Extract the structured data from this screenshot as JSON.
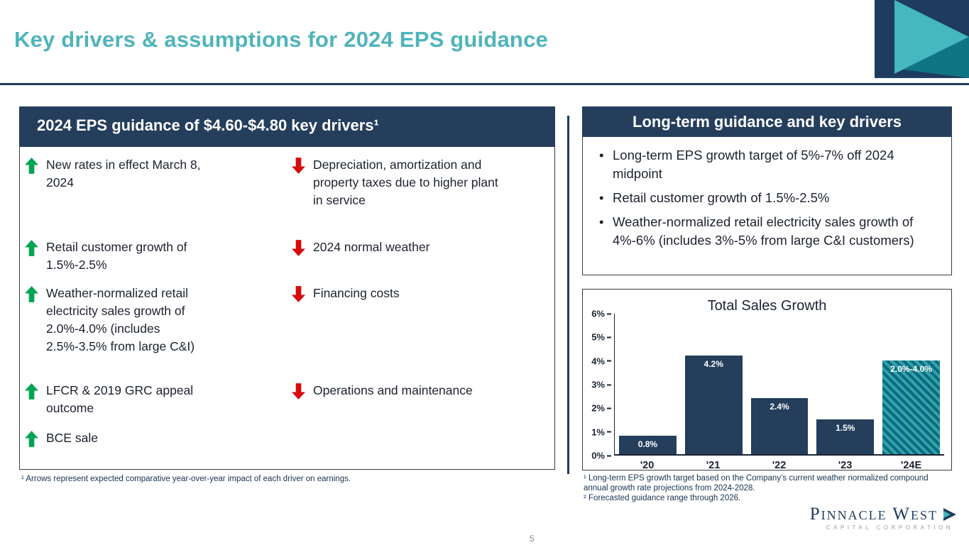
{
  "title": "Key drivers & assumptions for 2024 EPS guidance",
  "page_number": "5",
  "left_panel": {
    "header": "2024 EPS guidance of $4.60-$4.80 key drivers¹",
    "rows": [
      {
        "left_text": "New rates in effect March 8, 2024",
        "right_text": "Depreciation, amortization and property taxes due to higher plant in service"
      },
      {
        "left_text": "Retail customer growth of 1.5%-2.5%",
        "right_text": "2024 normal weather"
      },
      {
        "left_text": "Weather-normalized retail electricity sales growth of 2.0%-4.0% (includes 2.5%-3.5% from large C&I)",
        "right_text": "Financing costs"
      },
      {
        "left_text": "LFCR & 2019 GRC appeal outcome",
        "right_text": "Operations and maintenance"
      },
      {
        "left_text": "BCE sale",
        "right_text": ""
      }
    ],
    "footnote": "¹ Arrows represent expected comparative year-over-year impact of each driver on earnings."
  },
  "right_panel": {
    "header": "Long-term guidance and key drivers",
    "bullets": [
      "Long-term EPS growth target of 5%-7% off 2024 midpoint",
      "Retail customer growth of 1.5%-2.5%",
      "Weather-normalized retail electricity sales growth of 4%-6% (includes 3%-5% from large C&I customers)"
    ],
    "footnotes": [
      "¹ Long-term EPS growth target based on the Company’s current weather normalized compound annual growth rate projections from 2024-2028.",
      "² Forecasted guidance range through 2026."
    ]
  },
  "chart_data": {
    "type": "bar",
    "title": "Total Sales Growth",
    "categories": [
      "'20",
      "'21",
      "'22",
      "'23",
      "'24E"
    ],
    "values": [
      0.8,
      4.2,
      2.4,
      1.5,
      4.0
    ],
    "bar_labels": [
      "0.8%",
      "4.2%",
      "2.4%",
      "1.5%",
      "2.0%-4.0%"
    ],
    "hatched": [
      false,
      false,
      false,
      false,
      true
    ],
    "ylim": [
      0,
      6
    ],
    "yticks": [
      "0%",
      "1%",
      "2%",
      "3%",
      "4%",
      "5%",
      "6%"
    ],
    "xlabel": "",
    "ylabel": "",
    "grid": false,
    "legend": "none",
    "bar_color": "#243e5c",
    "hatch_colors": [
      "#0f6a7b",
      "#2fa3ae"
    ]
  },
  "logo": {
    "name": "Pinnacle West",
    "subtitle": "CAPITAL CORPORATION"
  },
  "colors": {
    "accent_teal": "#4fb4bb",
    "navy": "#1e3c5e",
    "panel_navy": "#243e5c",
    "positive_green": "#00a551",
    "negative_red": "#d60b0b"
  }
}
